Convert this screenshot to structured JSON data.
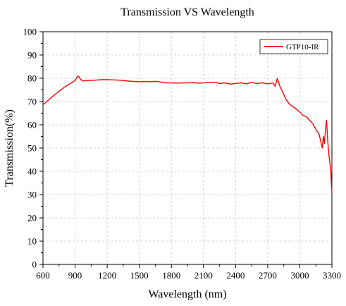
{
  "chart_data": {
    "type": "line",
    "title": "Transmission VS Wavelength",
    "xlabel": "Wavelength (nm)",
    "ylabel": "Transmission(%)",
    "xlim": [
      600,
      3300
    ],
    "ylim": [
      0,
      100
    ],
    "x_ticks": [
      600,
      900,
      1200,
      1500,
      1800,
      2100,
      2400,
      2700,
      3000,
      3300
    ],
    "y_ticks": [
      0,
      10,
      20,
      30,
      40,
      50,
      60,
      70,
      80,
      90,
      100
    ],
    "grid": true,
    "legend_position": "top-right",
    "series": [
      {
        "name": "GTP10-IR",
        "color": "#ff0000",
        "x": [
          600,
          650,
          700,
          750,
          800,
          850,
          900,
          920,
          935,
          950,
          965,
          980,
          1000,
          1050,
          1100,
          1150,
          1200,
          1250,
          1300,
          1350,
          1400,
          1450,
          1500,
          1550,
          1600,
          1650,
          1700,
          1750,
          1800,
          1850,
          1900,
          1950,
          2000,
          2050,
          2100,
          2150,
          2200,
          2250,
          2300,
          2350,
          2400,
          2450,
          2500,
          2550,
          2600,
          2650,
          2700,
          2750,
          2770,
          2790,
          2810,
          2830,
          2850,
          2870,
          2900,
          2930,
          2960,
          3000,
          3030,
          3060,
          3090,
          3120,
          3150,
          3180,
          3200,
          3210,
          3220,
          3230,
          3240,
          3250,
          3260,
          3270,
          3280,
          3290,
          3295,
          3300
        ],
        "y": [
          68.6,
          70.6,
          72.6,
          74.4,
          76.2,
          77.6,
          79.0,
          80.7,
          80.8,
          79.6,
          79.0,
          78.8,
          79.0,
          79.1,
          79.2,
          79.4,
          79.4,
          79.3,
          79.2,
          79.0,
          78.8,
          78.6,
          78.5,
          78.6,
          78.5,
          78.7,
          78.4,
          78.0,
          78.0,
          77.9,
          78.0,
          78.0,
          78.1,
          77.9,
          78.0,
          78.2,
          78.3,
          77.8,
          78.0,
          77.5,
          77.8,
          78.0,
          77.6,
          78.2,
          77.8,
          78.0,
          77.6,
          78.0,
          76.5,
          80.0,
          77.0,
          75.0,
          73.0,
          71.0,
          69.0,
          68.0,
          67.0,
          65.5,
          64.0,
          63.5,
          62.0,
          60.5,
          58.0,
          56.0,
          52.0,
          50.0,
          55.0,
          52.0,
          58.0,
          62.0,
          54.0,
          48.0,
          44.0,
          40.0,
          35.0,
          30.5
        ]
      }
    ]
  }
}
